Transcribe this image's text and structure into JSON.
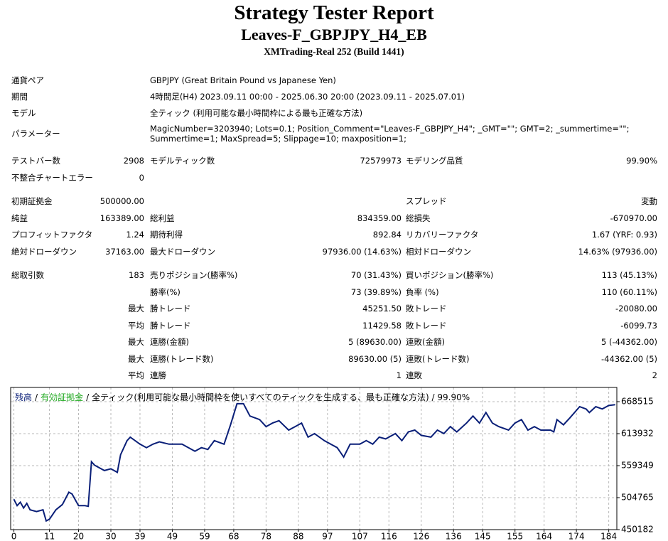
{
  "header": {
    "title": "Strategy Tester Report",
    "subtitle": "Leaves-F_GBPJPY_H4_EB",
    "server": "XMTrading-Real 252 (Build 1441)"
  },
  "info": [
    {
      "label": "通貨ペア",
      "value": [
        "GBPJPY (Great Britain Pound vs Japanese Yen)"
      ]
    },
    {
      "label": "期間",
      "value": [
        "4時間足(H4) 2023.09.11 00:00 - 2025.06.30 20:00 (2023.09.11 - 2025.07.01)"
      ]
    },
    {
      "label": "モデル",
      "value": [
        "全ティック (利用可能な最小時間枠による最も正確な方法)"
      ]
    },
    {
      "label": "パラメーター",
      "value": [
        "MagicNumber=3203940; Lots=0.1; Position_Comment=\"Leaves-F_GBPJPY_H4\"; _GMT=\"\"; GMT=2; _summertime=\"\";",
        "Summertime=1; MaxSpread=5; Slippage=10; maxposition=1;"
      ]
    }
  ],
  "stats": [
    [
      [
        "テストバー数",
        "2908",
        "モデルティック数",
        "72579973",
        "モデリング品質",
        "99.90%"
      ],
      [
        "不整合チャートエラー",
        "0",
        null,
        null,
        null,
        null
      ]
    ],
    [
      [
        "初期証拠金",
        "500000.00",
        null,
        null,
        "スプレッド",
        "変動"
      ],
      [
        "純益",
        "163389.00",
        "総利益",
        "834359.00",
        "総損失",
        "-670970.00"
      ],
      [
        "プロフィットファクタ",
        "1.24",
        "期待利得",
        "892.84",
        "リカバリーファクタ",
        "1.67 (YRF: 0.93)"
      ],
      [
        "絶対ドローダウン",
        "37163.00",
        "最大ドローダウン",
        "97936.00 (14.63%)",
        "相対ドローダウン",
        "14.63% (97936.00)"
      ]
    ],
    [
      [
        "総取引数",
        "183",
        "売りポジション(勝率%)",
        "70 (31.43%)",
        "買いポジション(勝率%)",
        "113 (45.13%)"
      ],
      [
        null,
        null,
        "勝率(%)",
        "73 (39.89%)",
        "負率 (%)",
        "110 (60.11%)"
      ],
      [
        null,
        "最大",
        "勝トレード",
        "45251.50",
        "敗トレード",
        "-20080.00"
      ],
      [
        null,
        "平均",
        "勝トレード",
        "11429.58",
        "敗トレード",
        "-6099.73"
      ],
      [
        null,
        "最大",
        "連勝(金額)",
        "5 (89630.00)",
        "連敗(金額)",
        "5 (-44362.00)"
      ],
      [
        null,
        "最大",
        "連勝(トレード数)",
        "89630.00 (5)",
        "連敗(トレード数)",
        "-44362.00 (5)"
      ],
      [
        null,
        "平均",
        "連勝",
        "1",
        "連敗",
        "2"
      ]
    ]
  ],
  "chart_data": {
    "type": "line",
    "legend_separator": "/",
    "legend_note": "全ティック(利用可能な最小時間枠を使いすべてのティックを生成する、最も正確な方法) / 99.90%",
    "x": [
      0,
      1,
      2,
      3,
      4,
      5,
      7,
      9,
      10,
      11,
      13,
      15,
      17,
      18,
      20,
      22,
      23,
      24,
      25,
      28,
      30,
      32,
      33,
      35,
      36,
      39,
      41,
      43,
      45,
      48,
      52,
      54,
      56,
      58,
      60,
      62,
      65,
      67,
      69,
      71,
      73,
      76,
      78,
      80,
      82,
      85,
      87,
      89,
      91,
      93,
      96,
      98,
      100,
      102,
      104,
      107,
      109,
      111,
      113,
      115,
      118,
      120,
      122,
      124,
      126,
      129,
      131,
      133,
      135,
      137,
      140,
      142,
      144,
      146,
      148,
      150,
      153,
      155,
      157,
      159,
      161,
      163,
      166,
      167,
      168,
      170,
      172,
      175,
      177,
      178,
      180,
      182,
      184,
      186
    ],
    "series": [
      {
        "name": "有効証拠金",
        "color": "#22aa22",
        "values": [
          502000,
          491000,
          497000,
          487000,
          495000,
          484000,
          481000,
          484000,
          465000,
          468000,
          484000,
          493000,
          514000,
          511000,
          491000,
          491000,
          490000,
          566000,
          560000,
          551000,
          554000,
          548000,
          578000,
          602000,
          608000,
          596000,
          590000,
          596000,
          600000,
          596000,
          596000,
          590000,
          584000,
          590000,
          587000,
          602000,
          596000,
          629000,
          665000,
          665000,
          644000,
          638000,
          626000,
          632000,
          636000,
          620000,
          626000,
          632000,
          608000,
          614000,
          602000,
          596000,
          590000,
          574000,
          596000,
          596000,
          602000,
          596000,
          608000,
          605000,
          614000,
          602000,
          617000,
          620000,
          611000,
          608000,
          620000,
          614000,
          626000,
          617000,
          632000,
          644000,
          632000,
          650000,
          632000,
          626000,
          620000,
          632000,
          638000,
          620000,
          626000,
          620000,
          620000,
          617000,
          638000,
          629000,
          641000,
          660000,
          656000,
          650000,
          660000,
          656000,
          662000,
          663389
        ]
      },
      {
        "name": "残高",
        "color": "#0a1f78",
        "values": [
          502000,
          491000,
          497000,
          487000,
          495000,
          484000,
          481000,
          484000,
          465000,
          468000,
          484000,
          493000,
          514000,
          511000,
          491000,
          491000,
          490000,
          566000,
          560000,
          551000,
          554000,
          548000,
          578000,
          602000,
          608000,
          596000,
          590000,
          596000,
          600000,
          596000,
          596000,
          590000,
          584000,
          590000,
          587000,
          602000,
          596000,
          629000,
          665000,
          665000,
          644000,
          638000,
          626000,
          632000,
          636000,
          620000,
          626000,
          632000,
          608000,
          614000,
          602000,
          596000,
          590000,
          574000,
          596000,
          596000,
          602000,
          596000,
          608000,
          605000,
          614000,
          602000,
          617000,
          620000,
          611000,
          608000,
          620000,
          614000,
          626000,
          617000,
          632000,
          644000,
          632000,
          650000,
          632000,
          626000,
          620000,
          632000,
          638000,
          620000,
          626000,
          620000,
          620000,
          617000,
          638000,
          629000,
          641000,
          660000,
          656000,
          650000,
          660000,
          656000,
          662000,
          663389
        ]
      }
    ],
    "xlim": [
      -1,
      186.5
    ],
    "xticks": [
      0,
      11,
      20,
      30,
      39,
      49,
      59,
      68,
      78,
      88,
      97,
      107,
      116,
      126,
      136,
      145,
      155,
      164,
      174,
      184
    ],
    "ylim": [
      450182,
      692775
    ],
    "yticks": [
      450182,
      504765,
      559349,
      613932,
      668515
    ],
    "grid": true
  }
}
